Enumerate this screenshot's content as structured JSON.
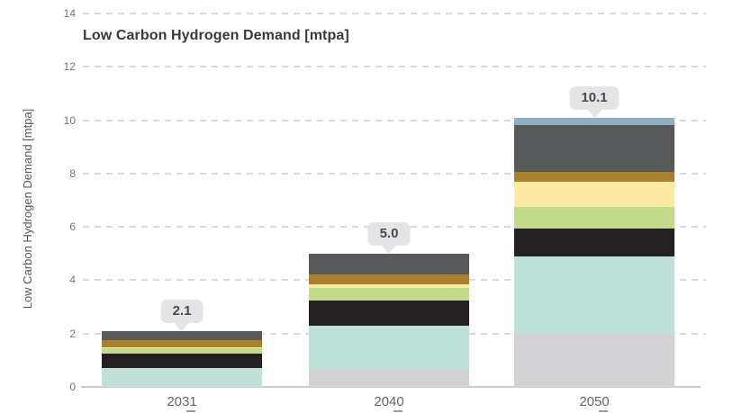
{
  "chart_data": {
    "type": "bar",
    "subtype": "stacked-bar",
    "title": "Low Carbon Hydrogen Demand [mtpa]",
    "ylabel": "Low Carbon Hydrogen Demand [mtpa]",
    "xlabel": "",
    "categories": [
      "2031",
      "2040",
      "2050"
    ],
    "totals": [
      2.1,
      5.0,
      10.1
    ],
    "total_labels": [
      "2.1",
      "5.0",
      "10.1"
    ],
    "ylim": [
      0,
      14
    ],
    "yticks": [
      0,
      2,
      4,
      6,
      8,
      10,
      12,
      14
    ],
    "grid": "dashed-horizontal-gridlines",
    "legend_position": "none",
    "series": [
      {
        "name": "light-gray-segment",
        "color": "#d2d2d4",
        "values": [
          0,
          0.6,
          2.0
        ]
      },
      {
        "name": "teal-segment",
        "color": "#bfe1d9",
        "values": [
          0.7,
          1.7,
          2.9
        ]
      },
      {
        "name": "black-segment",
        "color": "#241f21",
        "values": [
          0.55,
          0.95,
          1.05
        ]
      },
      {
        "name": "green-segment",
        "color": "#c3da8d",
        "values": [
          0.2,
          0.45,
          0.8
        ]
      },
      {
        "name": "pale-yellow-segment",
        "color": "#fce9a2",
        "values": [
          0.05,
          0.15,
          0.95
        ]
      },
      {
        "name": "gold-segment",
        "color": "#a9812e",
        "values": [
          0.25,
          0.35,
          0.35
        ]
      },
      {
        "name": "dark-gray-segment",
        "color": "#58595b",
        "values": [
          0.35,
          0.8,
          1.75
        ]
      },
      {
        "name": "blue-gray-segment",
        "color": "#8fafc0",
        "values": [
          0,
          0,
          0.3
        ]
      }
    ]
  },
  "colors": {
    "background": "#ffffff",
    "gridline": "#d9dadb",
    "axis_line": "#cbccce",
    "tick_label": "#737476",
    "title_text": "#39393b",
    "ylabel_text": "#565759",
    "xlabel_text": "#646568",
    "callout_bg": "#e4e4e6",
    "callout_text": "#48484b",
    "xdash": "#9b9b9d"
  }
}
